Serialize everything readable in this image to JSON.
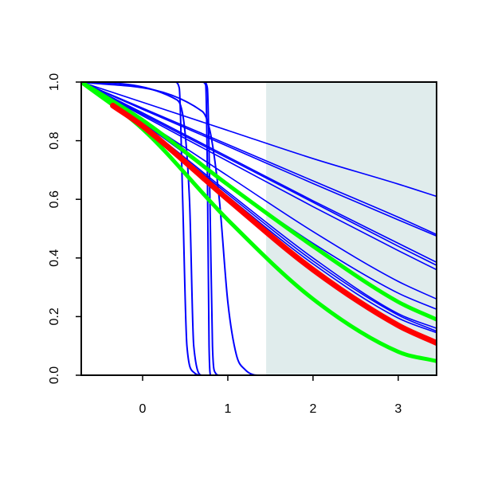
{
  "chart_data": {
    "type": "line",
    "title": "",
    "xlabel": "",
    "ylabel": "",
    "xlim": [
      -0.72,
      3.45
    ],
    "ylim": [
      0.0,
      1.0
    ],
    "x_ticks": [
      0,
      1,
      2,
      3
    ],
    "x_tick_labels": [
      "0",
      "1",
      "2",
      "3"
    ],
    "y_ticks": [
      0.0,
      0.2,
      0.4,
      0.6,
      0.8,
      1.0
    ],
    "y_tick_labels": [
      "0.0",
      "0.2",
      "0.4",
      "0.6",
      "0.8",
      "1.0"
    ],
    "grid": false,
    "legend": "none",
    "shaded_region": {
      "x_start": 1.45,
      "x_end": 3.45,
      "color": "#e0ecec"
    },
    "colors": {
      "blue": "#0000ff",
      "red": "#ff0000",
      "green": "#00ff00",
      "axis": "#000000"
    },
    "series": [
      {
        "color": "#0000ff",
        "width": 2,
        "points": [
          [
            -0.72,
            1.0
          ],
          [
            0.4,
            0.94
          ],
          [
            0.55,
            0.6
          ],
          [
            0.6,
            0.1
          ],
          [
            0.7,
            0.0
          ],
          [
            3.45,
            0.0
          ]
        ]
      },
      {
        "color": "#0000ff",
        "width": 2,
        "points": [
          [
            -0.72,
            1.0
          ],
          [
            0.38,
            1.0
          ],
          [
            0.43,
            0.98
          ],
          [
            0.47,
            0.6
          ],
          [
            0.52,
            0.1
          ],
          [
            0.6,
            0.01
          ],
          [
            0.7,
            0.0
          ],
          [
            3.45,
            0.0
          ]
        ]
      },
      {
        "color": "#0000ff",
        "width": 2,
        "points": [
          [
            -0.72,
            1.0
          ],
          [
            0.7,
            1.0
          ],
          [
            0.74,
            0.99
          ],
          [
            0.76,
            0.7
          ],
          [
            0.78,
            0.1
          ],
          [
            0.8,
            0.0
          ],
          [
            3.45,
            0.0
          ]
        ]
      },
      {
        "color": "#0000ff",
        "width": 2,
        "points": [
          [
            -0.72,
            1.0
          ],
          [
            0.72,
            1.0
          ],
          [
            0.76,
            0.98
          ],
          [
            0.79,
            0.6
          ],
          [
            0.82,
            0.1
          ],
          [
            0.85,
            0.01
          ],
          [
            0.9,
            0.0
          ],
          [
            3.45,
            0.0
          ]
        ]
      },
      {
        "color": "#0000ff",
        "width": 2,
        "points": [
          [
            -0.72,
            1.0
          ],
          [
            0.7,
            0.9
          ],
          [
            0.8,
            0.82
          ],
          [
            0.9,
            0.6
          ],
          [
            1.0,
            0.25
          ],
          [
            1.1,
            0.07
          ],
          [
            1.2,
            0.02
          ],
          [
            1.35,
            0.0
          ],
          [
            3.45,
            0.0
          ]
        ]
      },
      {
        "color": "#0000ff",
        "width": 1.6,
        "points": [
          [
            -0.72,
            1.0
          ],
          [
            0.0,
            0.931
          ],
          [
            1.0,
            0.835
          ],
          [
            2.0,
            0.739
          ],
          [
            3.0,
            0.652
          ],
          [
            3.45,
            0.61
          ]
        ]
      },
      {
        "color": "#0000ff",
        "width": 1.6,
        "points": [
          [
            -0.72,
            1.0
          ],
          [
            0.0,
            0.911
          ],
          [
            1.0,
            0.787
          ],
          [
            2.0,
            0.663
          ],
          [
            3.0,
            0.539
          ],
          [
            3.45,
            0.48
          ]
        ]
      },
      {
        "color": "#0000ff",
        "width": 1.6,
        "points": [
          [
            -0.72,
            1.0
          ],
          [
            0.0,
            0.907
          ],
          [
            1.0,
            0.781
          ],
          [
            2.0,
            0.654
          ],
          [
            3.0,
            0.53
          ],
          [
            3.45,
            0.475
          ]
        ]
      },
      {
        "color": "#0000ff",
        "width": 1.6,
        "points": [
          [
            -0.72,
            1.0
          ],
          [
            0.0,
            0.89
          ],
          [
            1.0,
            0.74
          ],
          [
            2.0,
            0.59
          ],
          [
            3.0,
            0.44
          ],
          [
            3.45,
            0.375
          ]
        ]
      },
      {
        "color": "#0000ff",
        "width": 1.6,
        "points": [
          [
            -0.72,
            1.0
          ],
          [
            0.0,
            0.885
          ],
          [
            1.0,
            0.73
          ],
          [
            2.0,
            0.575
          ],
          [
            3.0,
            0.425
          ],
          [
            3.45,
            0.36
          ]
        ]
      },
      {
        "color": "#0000ff",
        "width": 1.6,
        "points": [
          [
            -0.72,
            1.0
          ],
          [
            0.0,
            0.895
          ],
          [
            1.0,
            0.745
          ],
          [
            2.0,
            0.595
          ],
          [
            3.0,
            0.45
          ],
          [
            3.45,
            0.385
          ]
        ]
      },
      {
        "color": "#0000ff",
        "width": 1.6,
        "points": [
          [
            -0.72,
            1.0
          ],
          [
            0.0,
            0.87
          ],
          [
            1.0,
            0.68
          ],
          [
            2.0,
            0.49
          ],
          [
            3.0,
            0.32
          ],
          [
            3.45,
            0.26
          ]
        ]
      },
      {
        "color": "#0000ff",
        "width": 1.6,
        "points": [
          [
            -0.72,
            1.0
          ],
          [
            0.0,
            0.86
          ],
          [
            1.0,
            0.65
          ],
          [
            2.0,
            0.45
          ],
          [
            3.0,
            0.28
          ],
          [
            3.45,
            0.225
          ]
        ]
      },
      {
        "color": "#0000ff",
        "width": 1.6,
        "points": [
          [
            -0.72,
            1.0
          ],
          [
            0.0,
            0.855
          ],
          [
            1.0,
            0.625
          ],
          [
            2.0,
            0.4
          ],
          [
            3.0,
            0.21
          ],
          [
            3.45,
            0.16
          ]
        ]
      },
      {
        "color": "#0000ff",
        "width": 1.6,
        "points": [
          [
            -0.72,
            1.0
          ],
          [
            0.0,
            0.85
          ],
          [
            1.0,
            0.61
          ],
          [
            2.0,
            0.38
          ],
          [
            3.0,
            0.195
          ],
          [
            3.45,
            0.145
          ]
        ]
      },
      {
        "color": "#0000ff",
        "width": 1.6,
        "points": [
          [
            -0.72,
            1.0
          ],
          [
            0.0,
            0.852
          ],
          [
            1.0,
            0.618
          ],
          [
            2.0,
            0.39
          ],
          [
            3.0,
            0.205
          ],
          [
            3.45,
            0.15
          ]
        ]
      },
      {
        "color": "#00ff00",
        "width": 5,
        "points": [
          [
            -0.72,
            1.0
          ],
          [
            0.0,
            0.87
          ],
          [
            1.0,
            0.65
          ],
          [
            2.0,
            0.44
          ],
          [
            3.0,
            0.25
          ],
          [
            3.45,
            0.19
          ]
        ]
      },
      {
        "color": "#00ff00",
        "width": 5,
        "points": [
          [
            -0.72,
            1.0
          ],
          [
            0.0,
            0.84
          ],
          [
            1.0,
            0.53
          ],
          [
            2.0,
            0.26
          ],
          [
            3.0,
            0.08
          ],
          [
            3.45,
            0.048
          ]
        ]
      },
      {
        "color": "#ff0000",
        "width": 7,
        "points": [
          [
            -0.35,
            0.92
          ],
          [
            0.0,
            0.85
          ],
          [
            1.0,
            0.6
          ],
          [
            2.0,
            0.36
          ],
          [
            3.0,
            0.17
          ],
          [
            3.45,
            0.11
          ]
        ]
      }
    ]
  }
}
